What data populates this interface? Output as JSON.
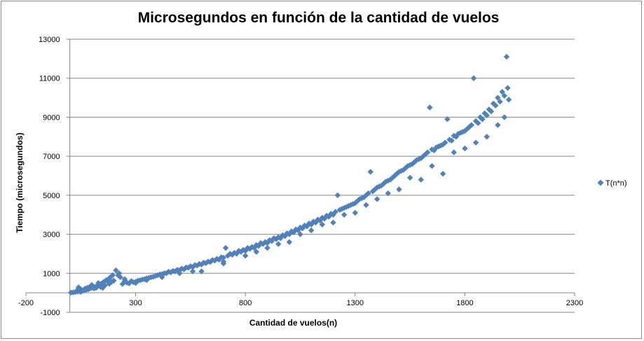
{
  "chart_data": {
    "type": "scatter",
    "title": "Microsegundos en función de la  cantidad de vuelos",
    "xlabel": "Cantidad de vuelos(n)",
    "ylabel": "Tiempo  (microsegundos)",
    "xlim": [
      -200,
      2300
    ],
    "ylim": [
      -1000,
      13000
    ],
    "xticks": [
      -200,
      300,
      800,
      1300,
      1800,
      2300
    ],
    "yticks": [
      -1000,
      1000,
      3000,
      5000,
      7000,
      9000,
      11000,
      13000
    ],
    "grid": true,
    "legend_position": "right",
    "marker": "diamond",
    "color": "#4f81bd",
    "series": [
      {
        "name": "T(n*n)",
        "points": [
          [
            5,
            10
          ],
          [
            15,
            20
          ],
          [
            25,
            40
          ],
          [
            35,
            60
          ],
          [
            45,
            70
          ],
          [
            55,
            90
          ],
          [
            65,
            120
          ],
          [
            75,
            150
          ],
          [
            85,
            180
          ],
          [
            95,
            230
          ],
          [
            105,
            260
          ],
          [
            115,
            300
          ],
          [
            125,
            350
          ],
          [
            135,
            420
          ],
          [
            145,
            480
          ],
          [
            155,
            560
          ],
          [
            165,
            640
          ],
          [
            175,
            700
          ],
          [
            185,
            800
          ],
          [
            195,
            900
          ],
          [
            210,
            1150
          ],
          [
            225,
            1000
          ],
          [
            40,
            280
          ],
          [
            60,
            120
          ],
          [
            80,
            260
          ],
          [
            100,
            400
          ],
          [
            120,
            250
          ],
          [
            140,
            300
          ],
          [
            160,
            380
          ],
          [
            180,
            460
          ],
          [
            200,
            620
          ],
          [
            220,
            900
          ],
          [
            240,
            450
          ],
          [
            260,
            520
          ],
          [
            280,
            600
          ],
          [
            300,
            560
          ],
          [
            320,
            640
          ],
          [
            340,
            700
          ],
          [
            360,
            760
          ],
          [
            380,
            820
          ],
          [
            400,
            900
          ],
          [
            420,
            960
          ],
          [
            440,
            1000
          ],
          [
            460,
            1050
          ],
          [
            480,
            1100
          ],
          [
            500,
            1150
          ],
          [
            520,
            1200
          ],
          [
            540,
            1280
          ],
          [
            560,
            1320
          ],
          [
            580,
            1400
          ],
          [
            600,
            1450
          ],
          [
            620,
            1520
          ],
          [
            640,
            1580
          ],
          [
            660,
            1650
          ],
          [
            680,
            1700
          ],
          [
            700,
            1800
          ],
          [
            710,
            2300
          ],
          [
            720,
            1900
          ],
          [
            740,
            1950
          ],
          [
            760,
            2000
          ],
          [
            780,
            2100
          ],
          [
            800,
            2150
          ],
          [
            820,
            2250
          ],
          [
            840,
            2300
          ],
          [
            860,
            2400
          ],
          [
            880,
            2500
          ],
          [
            900,
            2550
          ],
          [
            920,
            2650
          ],
          [
            940,
            2750
          ],
          [
            960,
            2800
          ],
          [
            980,
            2900
          ],
          [
            1000,
            3000
          ],
          [
            1020,
            3100
          ],
          [
            1040,
            3200
          ],
          [
            1060,
            3300
          ],
          [
            1080,
            3400
          ],
          [
            1100,
            3500
          ],
          [
            1120,
            3600
          ],
          [
            1140,
            3700
          ],
          [
            1160,
            3800
          ],
          [
            1180,
            3900
          ],
          [
            1200,
            4000
          ],
          [
            1220,
            5000
          ],
          [
            1240,
            4300
          ],
          [
            1260,
            4400
          ],
          [
            1280,
            4500
          ],
          [
            1300,
            4600
          ],
          [
            1320,
            4800
          ],
          [
            1340,
            4900
          ],
          [
            1360,
            5100
          ],
          [
            1370,
            6200
          ],
          [
            1380,
            5200
          ],
          [
            1400,
            5400
          ],
          [
            1420,
            5500
          ],
          [
            1440,
            5700
          ],
          [
            1460,
            5800
          ],
          [
            1480,
            6000
          ],
          [
            1500,
            6200
          ],
          [
            1520,
            6300
          ],
          [
            1540,
            6500
          ],
          [
            1560,
            6600
          ],
          [
            1580,
            6800
          ],
          [
            1600,
            6900
          ],
          [
            1620,
            7100
          ],
          [
            1640,
            9500
          ],
          [
            1660,
            7300
          ],
          [
            1680,
            7500
          ],
          [
            1700,
            7600
          ],
          [
            1720,
            8900
          ],
          [
            1740,
            7800
          ],
          [
            1760,
            8000
          ],
          [
            1780,
            8200
          ],
          [
            1800,
            8300
          ],
          [
            1820,
            8500
          ],
          [
            1840,
            11000
          ],
          [
            1860,
            8700
          ],
          [
            1880,
            8900
          ],
          [
            1900,
            9100
          ],
          [
            1920,
            9300
          ],
          [
            1940,
            9600
          ],
          [
            1960,
            9800
          ],
          [
            1980,
            10100
          ],
          [
            1990,
            12100
          ],
          [
            2000,
            9900
          ],
          [
            30,
            90
          ],
          [
            50,
            180
          ],
          [
            70,
            220
          ],
          [
            90,
            300
          ],
          [
            110,
            220
          ],
          [
            130,
            500
          ],
          [
            150,
            420
          ],
          [
            170,
            620
          ],
          [
            190,
            560
          ],
          [
            230,
            800
          ],
          [
            250,
            700
          ],
          [
            270,
            480
          ],
          [
            290,
            540
          ],
          [
            310,
            620
          ],
          [
            330,
            680
          ],
          [
            350,
            740
          ],
          [
            370,
            800
          ],
          [
            390,
            860
          ],
          [
            410,
            940
          ],
          [
            430,
            1000
          ],
          [
            450,
            1080
          ],
          [
            470,
            1120
          ],
          [
            490,
            1180
          ],
          [
            510,
            1240
          ],
          [
            530,
            1300
          ],
          [
            550,
            1360
          ],
          [
            570,
            1420
          ],
          [
            590,
            1480
          ],
          [
            610,
            1540
          ],
          [
            630,
            1600
          ],
          [
            650,
            1680
          ],
          [
            670,
            1740
          ],
          [
            690,
            1820
          ],
          [
            730,
            2000
          ],
          [
            750,
            2050
          ],
          [
            770,
            2150
          ],
          [
            790,
            2200
          ],
          [
            810,
            2300
          ],
          [
            830,
            2350
          ],
          [
            850,
            2450
          ],
          [
            870,
            2550
          ],
          [
            890,
            2600
          ],
          [
            910,
            2700
          ],
          [
            930,
            2800
          ],
          [
            950,
            2850
          ],
          [
            970,
            2950
          ],
          [
            990,
            3050
          ],
          [
            1010,
            3150
          ],
          [
            1030,
            3250
          ],
          [
            1050,
            3350
          ],
          [
            1070,
            3450
          ],
          [
            1090,
            3550
          ],
          [
            1110,
            3650
          ],
          [
            1130,
            3750
          ],
          [
            1150,
            3850
          ],
          [
            1170,
            3950
          ],
          [
            1190,
            4050
          ],
          [
            1210,
            4150
          ],
          [
            1230,
            4250
          ],
          [
            1250,
            4350
          ],
          [
            1270,
            4450
          ],
          [
            1290,
            4550
          ],
          [
            1310,
            4700
          ],
          [
            1330,
            4850
          ],
          [
            1350,
            5000
          ],
          [
            1390,
            5300
          ],
          [
            1410,
            5450
          ],
          [
            1430,
            5600
          ],
          [
            1450,
            5750
          ],
          [
            1470,
            5900
          ],
          [
            1490,
            6100
          ],
          [
            1510,
            6250
          ],
          [
            1530,
            6400
          ],
          [
            1550,
            6550
          ],
          [
            1570,
            6700
          ],
          [
            1590,
            6850
          ],
          [
            1610,
            7000
          ],
          [
            1630,
            7200
          ],
          [
            1650,
            7350
          ],
          [
            1670,
            7450
          ],
          [
            1690,
            7550
          ],
          [
            1710,
            7700
          ],
          [
            1730,
            7850
          ],
          [
            1750,
            8050
          ],
          [
            1770,
            8150
          ],
          [
            1790,
            8250
          ],
          [
            1810,
            8400
          ],
          [
            1830,
            8600
          ],
          [
            1850,
            8800
          ],
          [
            1870,
            9000
          ],
          [
            1890,
            9200
          ],
          [
            1910,
            9400
          ],
          [
            1930,
            9700
          ],
          [
            1950,
            10000
          ],
          [
            1970,
            10300
          ],
          [
            1995,
            10500
          ],
          [
            300,
            500
          ],
          [
            420,
            800
          ],
          [
            560,
            1100
          ],
          [
            700,
            1500
          ],
          [
            850,
            2100
          ],
          [
            950,
            2500
          ],
          [
            1050,
            3000
          ],
          [
            1150,
            3500
          ],
          [
            1250,
            4000
          ],
          [
            1350,
            4500
          ],
          [
            1450,
            5100
          ],
          [
            1550,
            5900
          ],
          [
            1650,
            6500
          ],
          [
            1750,
            7200
          ],
          [
            1850,
            7700
          ],
          [
            1950,
            8600
          ],
          [
            1980,
            9000
          ],
          [
            600,
            1100
          ],
          [
            800,
            1900
          ],
          [
            1000,
            2600
          ],
          [
            1200,
            3600
          ],
          [
            1400,
            4800
          ],
          [
            1600,
            5800
          ],
          [
            1800,
            7400
          ],
          [
            1900,
            8000
          ],
          [
            1700,
            6100
          ],
          [
            1500,
            5300
          ],
          [
            1300,
            4100
          ],
          [
            1100,
            3200
          ],
          [
            900,
            2300
          ],
          [
            700,
            1600
          ],
          [
            500,
            1000
          ],
          [
            350,
            650
          ],
          [
            250,
            600
          ],
          [
            150,
            250
          ],
          [
            50,
            50
          ]
        ]
      }
    ]
  }
}
